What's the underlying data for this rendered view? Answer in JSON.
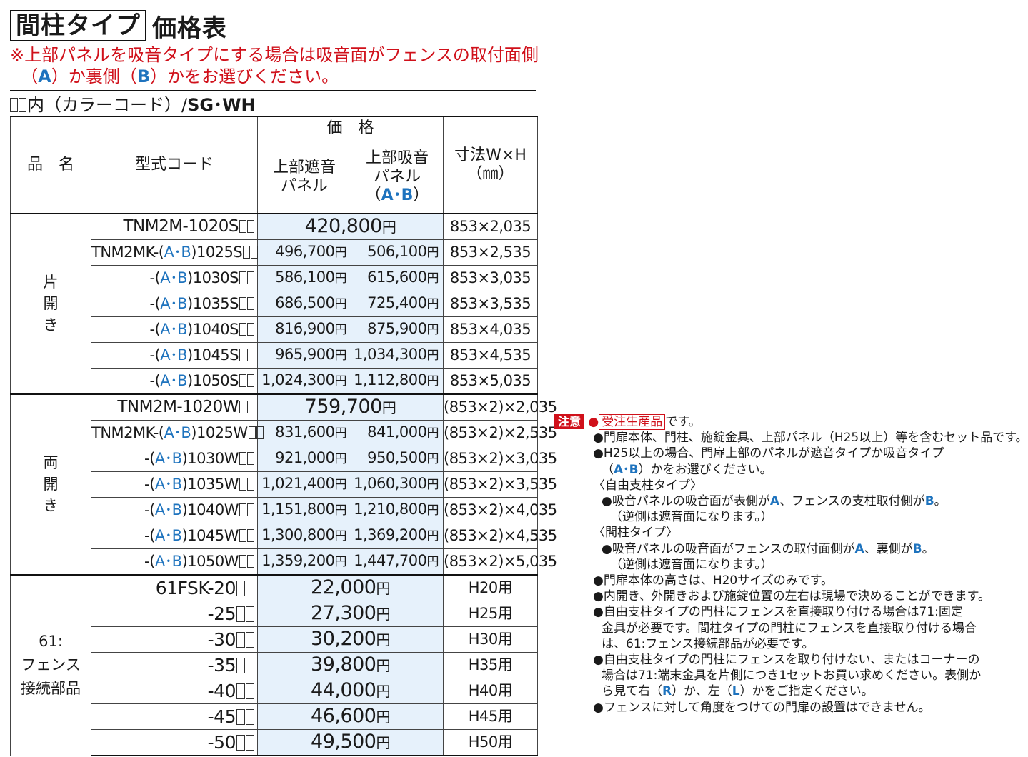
{
  "header": {
    "title_box": "間柱タイプ",
    "title_rest": "価格表",
    "notice_line1": "※上部パネルを吸音タイプにする場合は吸音面がフェンスの取付面側",
    "notice_line2_a": "（",
    "notice_A": "A",
    "notice_mid": "）か裏側（",
    "notice_B": "B",
    "notice_end": "）かをお選びください。"
  },
  "color_code": {
    "prefix": "内（カラーコード）/",
    "codes": "SG･WH"
  },
  "table": {
    "headers": {
      "name": "品　名",
      "code": "型式コード",
      "price": "価　格",
      "panel_shade_l1": "上部遮音",
      "panel_shade_l2": "パネル",
      "panel_absorb_l1": "上部吸音",
      "panel_absorb_l2": "パネル",
      "panel_absorb_l3a": "（",
      "panel_absorb_ab": "A･B",
      "panel_absorb_l3b": "）",
      "size_l1": "寸法W×H",
      "size_l2": "（㎜）"
    },
    "yen": "円",
    "groups": {
      "single": "片開き",
      "double": "両開き",
      "fence_l1": "61:",
      "fence_l2": "フェンス",
      "fence_l3": "接続部品"
    },
    "single_rows": [
      {
        "code_pre": "TNM2M-1020S",
        "price_merged": "420,800",
        "size": "853×2,035"
      },
      {
        "code_pre": "TNM2MK-(",
        "ab": "A･B",
        "code_post": ")1025S",
        "p1": "496,700",
        "p2": "506,100",
        "size": "853×2,535"
      },
      {
        "code_pre": "-(",
        "ab": "A･B",
        "code_post": ")1030S",
        "p1": "586,100",
        "p2": "615,600",
        "size": "853×3,035"
      },
      {
        "code_pre": "-(",
        "ab": "A･B",
        "code_post": ")1035S",
        "p1": "686,500",
        "p2": "725,400",
        "size": "853×3,535"
      },
      {
        "code_pre": "-(",
        "ab": "A･B",
        "code_post": ")1040S",
        "p1": "816,900",
        "p2": "875,900",
        "size": "853×4,035"
      },
      {
        "code_pre": "-(",
        "ab": "A･B",
        "code_post": ")1045S",
        "p1": "965,900",
        "p2": "1,034,300",
        "size": "853×4,535"
      },
      {
        "code_pre": "-(",
        "ab": "A･B",
        "code_post": ")1050S",
        "p1": "1,024,300",
        "p2": "1,112,800",
        "size": "853×5,035"
      }
    ],
    "double_rows": [
      {
        "code_pre": "TNM2M-1020W",
        "price_merged": "759,700",
        "size": "(853×2)×2,035"
      },
      {
        "code_pre": "TNM2MK-(",
        "ab": "A･B",
        "code_post": ")1025W",
        "p1": "831,600",
        "p2": "841,000",
        "size": "(853×2)×2,535"
      },
      {
        "code_pre": "-(",
        "ab": "A･B",
        "code_post": ")1030W",
        "p1": "921,000",
        "p2": "950,500",
        "size": "(853×2)×3,035"
      },
      {
        "code_pre": "-(",
        "ab": "A･B",
        "code_post": ")1035W",
        "p1": "1,021,400",
        "p2": "1,060,300",
        "size": "(853×2)×3,535"
      },
      {
        "code_pre": "-(",
        "ab": "A･B",
        "code_post": ")1040W",
        "p1": "1,151,800",
        "p2": "1,210,800",
        "size": "(853×2)×4,035"
      },
      {
        "code_pre": "-(",
        "ab": "A･B",
        "code_post": ")1045W",
        "p1": "1,300,800",
        "p2": "1,369,200",
        "size": "(853×2)×4,535"
      },
      {
        "code_pre": "-(",
        "ab": "A･B",
        "code_post": ")1050W",
        "p1": "1,359,200",
        "p2": "1,447,700",
        "size": "(853×2)×5,035"
      }
    ],
    "fence_rows": [
      {
        "code": "61FSK-20",
        "price": "22,000",
        "size": "H20用"
      },
      {
        "code": "-25",
        "price": "27,300",
        "size": "H25用"
      },
      {
        "code": "-30",
        "price": "30,200",
        "size": "H30用"
      },
      {
        "code": "-35",
        "price": "39,800",
        "size": "H35用"
      },
      {
        "code": "-40",
        "price": "44,000",
        "size": "H40用"
      },
      {
        "code": "-45",
        "price": "46,600",
        "size": "H45用"
      },
      {
        "code": "-50",
        "price": "49,500",
        "size": "H50用"
      }
    ]
  },
  "notes": {
    "badge": "注意",
    "bullet": "●",
    "made_to_order": "受注生産品",
    "made_suffix": "です。",
    "n1": "●門扉本体、門柱、施錠金具、上部パネル（H25以上）等を含むセット品です。",
    "n2": "●H25以上の場合、門扉上部のパネルが遮音タイプか吸音タイプ",
    "n2b_pre": "（",
    "n2b_ab": "A･B",
    "n2b_post": "）かをお選びください。",
    "free_type": "〈自由支柱タイプ〉",
    "free_a_pre": "●吸音パネルの吸音面が表側が",
    "free_a": "A",
    "free_a_mid": "、フェンスの支柱取付側が",
    "free_b": "B",
    "free_b_post": "。",
    "reverse1": "（逆側は遮音面になります。）",
    "mid_type": "〈間柱タイプ〉",
    "mid_a_pre": "●吸音パネルの吸音面がフェンスの取付面側が",
    "mid_a": "A",
    "mid_mid": "、裏側が",
    "mid_b": "B",
    "mid_post": "。",
    "reverse2": "（逆側は遮音面になります。）",
    "n3": "●門扉本体の高さは、H20サイズのみです。",
    "n4": "●内開き、外開きおよび施錠位置の左右は現場で決めることができます。",
    "n5_1": "●自由支柱タイプの門柱にフェンスを直接取り付ける場合は71:固定",
    "n5_2": "金具が必要です。間柱タイプの門柱にフェンスを直接取り付ける場合",
    "n5_3": "は、61:フェンス接続部品が必要です。",
    "n6_1": "●自由支柱タイプの門柱にフェンスを取り付けない、またはコーナーの",
    "n6_2": "場合は71:端末金具を片側につき1セットお買い求めください。表側か",
    "n6_3_pre": "ら見て右（",
    "n6_r": "R",
    "n6_3_mid": "）か、左（",
    "n6_l": "L",
    "n6_3_post": "）かをご指定ください。",
    "n7": "●フェンスに対して角度をつけての門扉の設置はできません。"
  }
}
